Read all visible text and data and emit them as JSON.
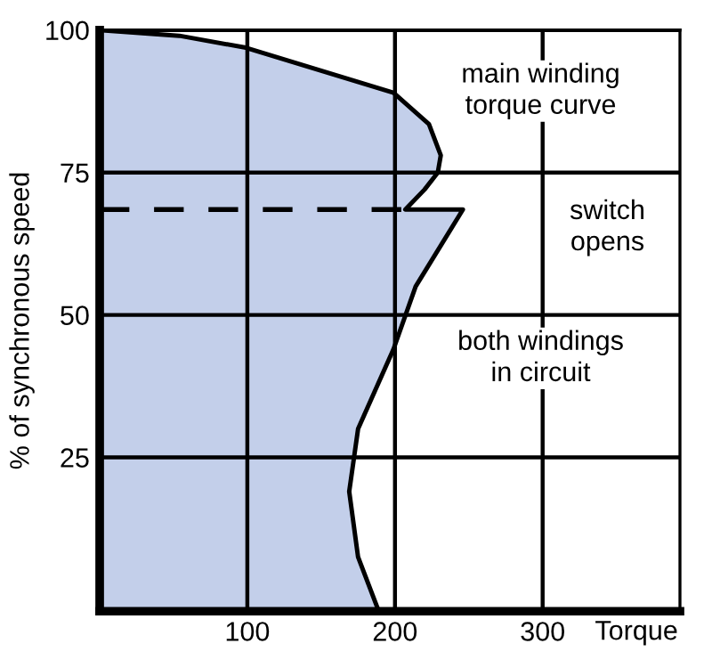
{
  "chart_data": {
    "type": "area",
    "orientation": "horizontal",
    "xlabel": "Torque",
    "ylabel": "% of synchronous speed",
    "series": [
      {
        "color": "#c3cfea",
        "x": [
          100,
          99,
          96.9,
          89,
          83.5,
          78,
          75,
          72,
          68.5,
          68.5,
          55,
          44,
          30,
          19,
          7.5,
          -2
        ],
        "values": [
          0,
          54,
          99,
          199,
          223,
          231,
          229,
          220,
          207,
          246,
          214,
          199,
          175,
          169,
          175,
          189
        ]
      },
      {
        "type": "line",
        "color": "#000000",
        "line_style": "dashed",
        "x": [
          68.5,
          68.5
        ],
        "values": [
          0,
          207
        ]
      }
    ],
    "annotations": [
      "main winding\ntorque curve",
      "switch\nopens",
      "both windings\nin circuit"
    ],
    "xlim": [
      0,
      393
    ],
    "ylim": [
      -2,
      100
    ],
    "xticks": [
      100,
      200,
      300
    ],
    "yticks": [
      25,
      50,
      75,
      100
    ],
    "grid": true
  }
}
